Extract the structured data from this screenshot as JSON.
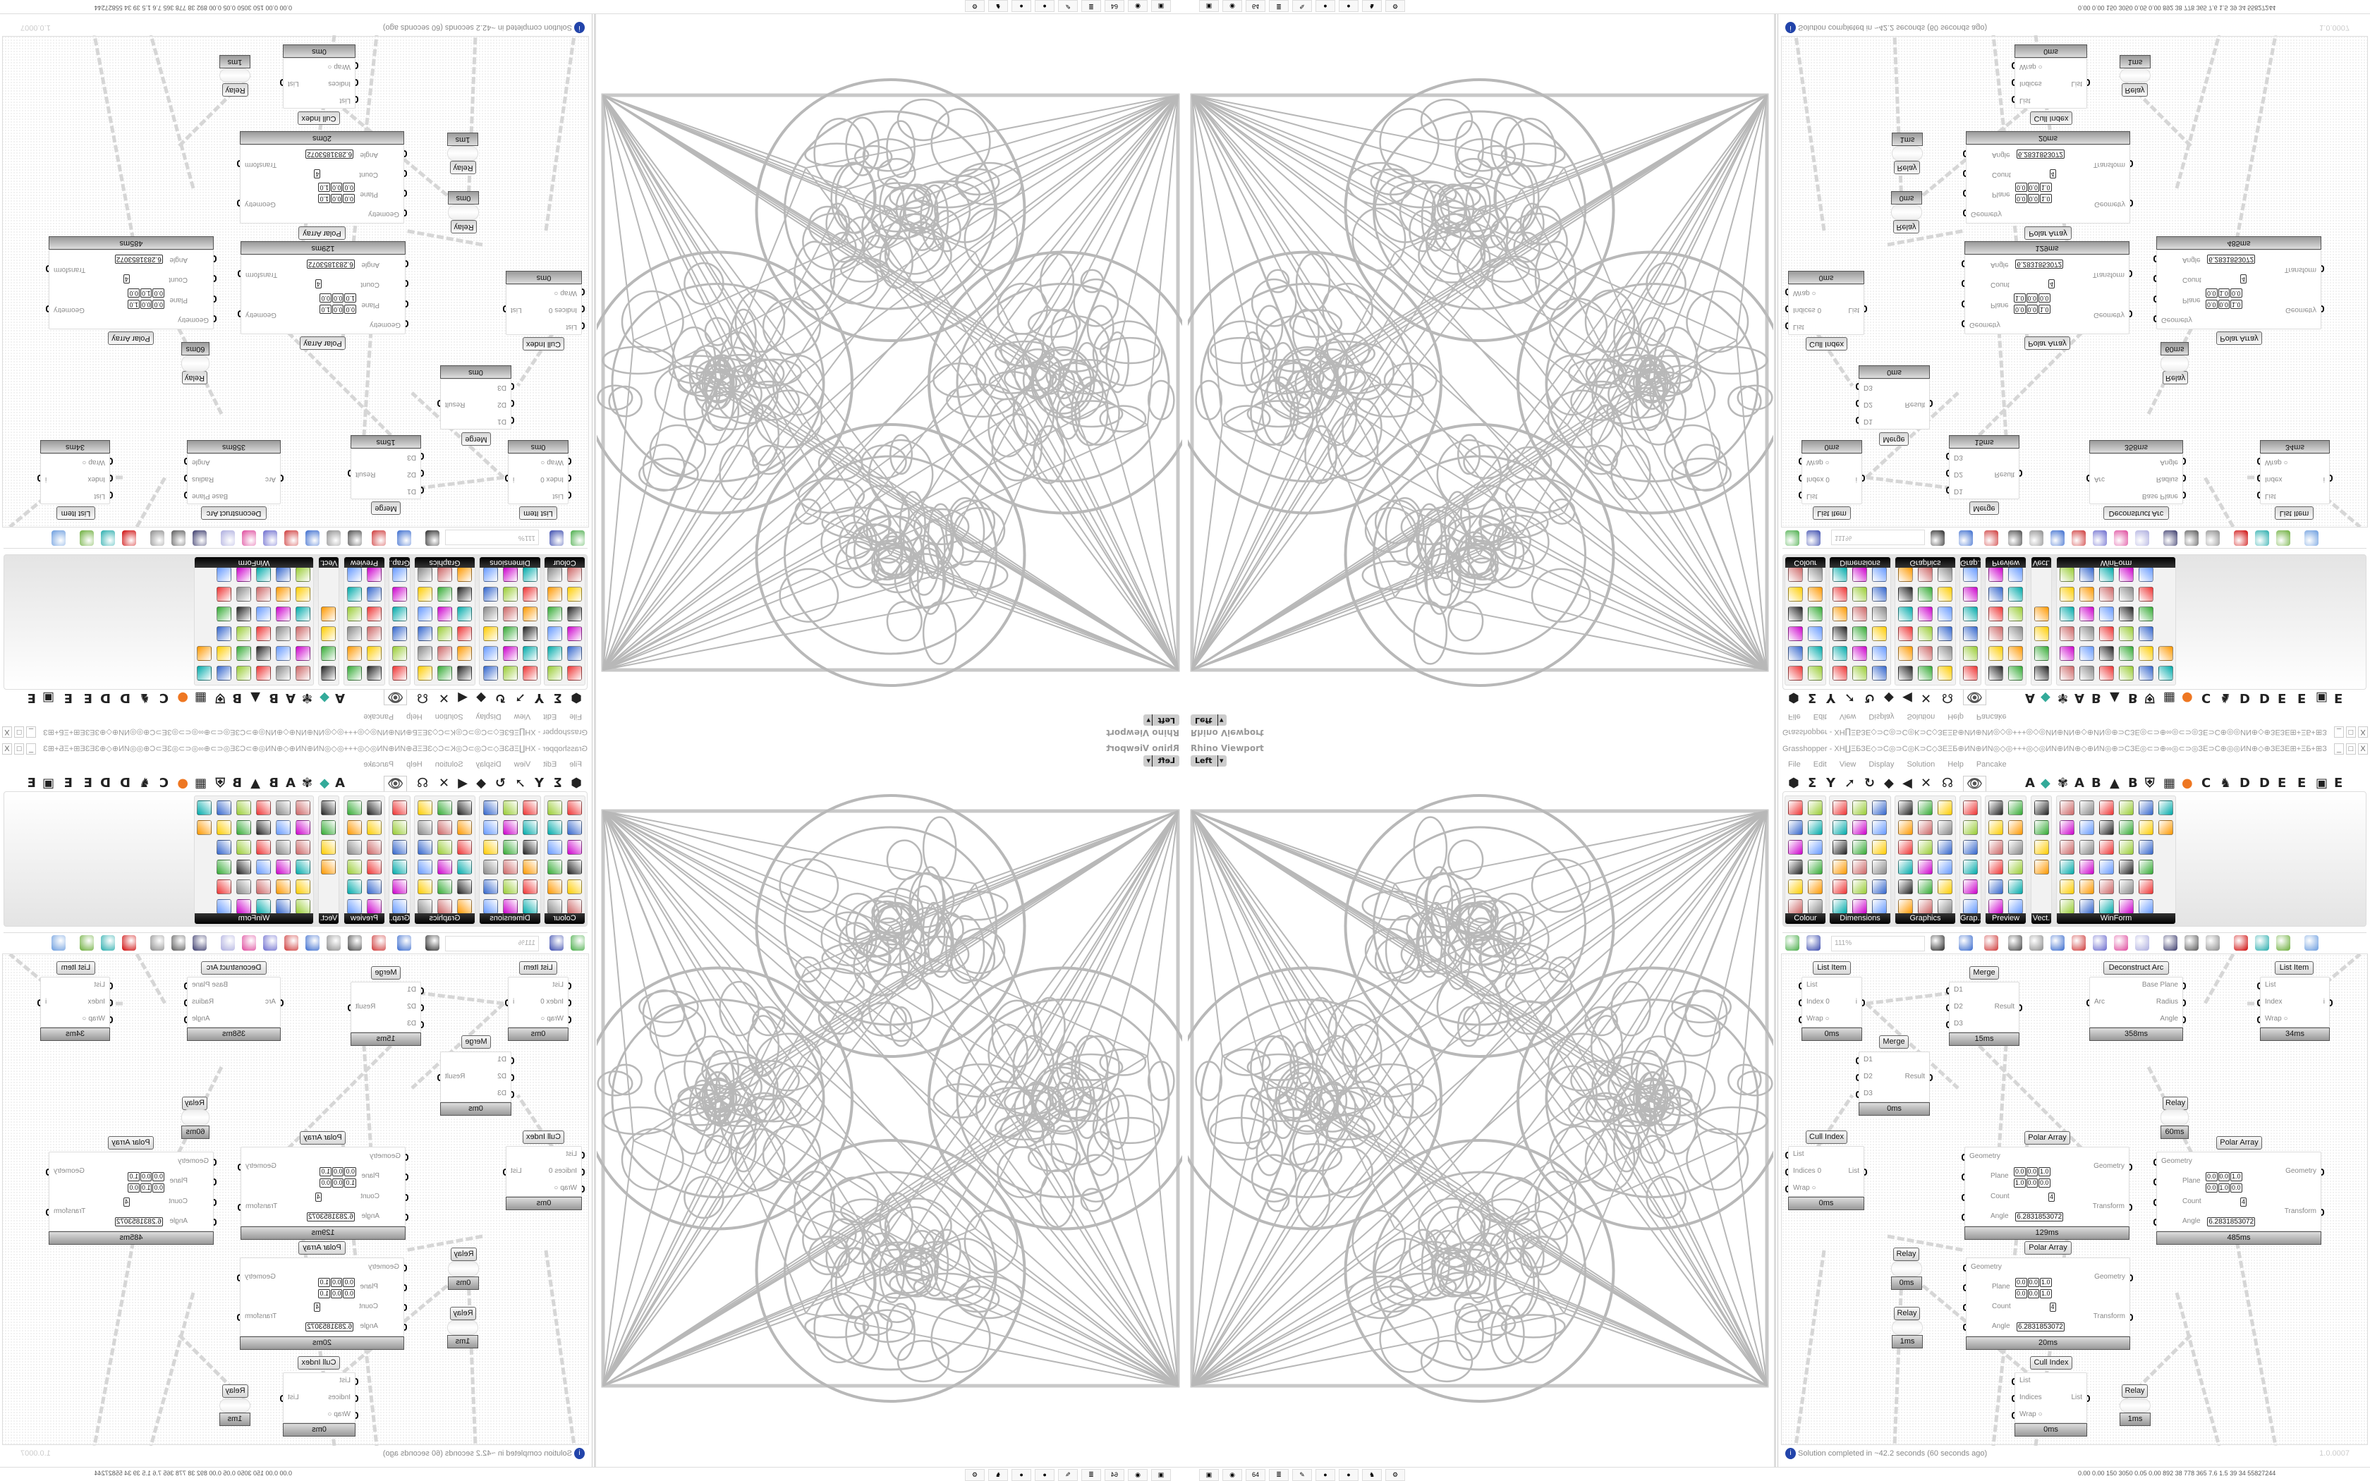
{
  "rhino": {
    "title": "Rhino Viewport",
    "view": "Left"
  },
  "gh": {
    "title": "Grasshopper - XH∐ΞБЗЕ◇⊃C◎⊃C◎K⊃C◇ЗЕΞБ⊕ИN⊕ИN◎◇◎+++◎◇◎ИN⊕ИN⊕◇⊕ИN◎⊕⊃CЗЕ◎⊂⊃⊕∞◎⊂⊃◎ЗЕ⊃C⊕◎◎ИN⊕◇⊕ЗЕЗЕ⊞+ΞБ+⊞ЗЕЗЕ⊕◇⊕◎⊃CЗЕ⊕+⊃C...",
    "window_buttons": [
      "_",
      "□",
      "X"
    ],
    "menu": [
      "File",
      "Edit",
      "View",
      "Display",
      "Solution",
      "Help",
      "Pancake"
    ],
    "tabs": [
      "⬢",
      "Σ",
      "Y",
      "➚",
      "↻",
      "◆",
      "◀",
      "✕",
      "☊",
      "👁",
      "A",
      "◆",
      "✾",
      "A",
      "B",
      "▲",
      "B",
      "⛨",
      "▦",
      "●",
      "C",
      "♞",
      "D",
      "D",
      "E",
      "E",
      "▣",
      "E"
    ],
    "panels": [
      "Colour",
      "Dimensions",
      "Graphics",
      "Grap...",
      "Preview",
      "Vect.",
      "WinForm"
    ],
    "zoom": "111%",
    "status": "Solution completed in ~42.2 seconds (60 seconds ago)",
    "version": "1.0.0007",
    "components": [
      {
        "name": "List Item",
        "inputs": [
          "List",
          "Index 0",
          "Wrap ○"
        ],
        "outputs": [
          "i"
        ],
        "time": "0ms"
      },
      {
        "name": "Merge",
        "inputs": [
          "D1",
          "D2",
          "D3"
        ],
        "outputs": [
          "Result"
        ],
        "time": "15ms"
      },
      {
        "name": "Deconstruct Arc",
        "inputs": [
          "Arc"
        ],
        "outputs": [
          "Base Plane",
          "Radius",
          "Angle"
        ],
        "time": "358ms"
      },
      {
        "name": "List Item",
        "inputs": [
          "List",
          "Index",
          "Wrap ○"
        ],
        "outputs": [
          "i"
        ],
        "time": "34ms"
      },
      {
        "name": "Merge",
        "inputs": [
          "D1",
          "D2",
          "D3"
        ],
        "outputs": [
          "Result"
        ],
        "time": "0ms"
      },
      {
        "name": "Relay",
        "inputs": [],
        "outputs": [],
        "time": "60ms"
      },
      {
        "name": "Cull Index",
        "inputs": [
          "List",
          "Indices 0",
          "Wrap ○"
        ],
        "outputs": [
          "List"
        ],
        "time": "0ms"
      },
      {
        "name": "Polar Array",
        "inputs": [
          "Geometry",
          "Plane",
          "Count",
          "Angle"
        ],
        "outputs": [
          "Geometry",
          "Transform"
        ],
        "plane_o": [
          "0.0",
          "0.0",
          "1.0"
        ],
        "plane_z": [
          "1.0",
          "0.0",
          "0.0"
        ],
        "count": "4",
        "angle": "6.2831853072",
        "time": "129ms"
      },
      {
        "name": "Polar Array",
        "inputs": [
          "Geometry",
          "Plane",
          "Count",
          "Angle"
        ],
        "outputs": [
          "Geometry",
          "Transform"
        ],
        "plane_o": [
          "0.0",
          "0.0",
          "1.0"
        ],
        "plane_z": [
          "0.0",
          "1.0",
          "0.0"
        ],
        "count": "4",
        "angle": "6.2831853072",
        "time": "485ms"
      },
      {
        "name": "Relay",
        "inputs": [],
        "outputs": [],
        "time": "0ms"
      },
      {
        "name": "Relay",
        "inputs": [],
        "outputs": [],
        "time": "1ms"
      },
      {
        "name": "Polar Array",
        "inputs": [
          "Geometry",
          "Plane",
          "Count",
          "Angle"
        ],
        "outputs": [
          "Geometry",
          "Transform"
        ],
        "plane_o": [
          "0.0",
          "0.0",
          "1.0"
        ],
        "plane_z": [
          "0.0",
          "0.0",
          "1.0"
        ],
        "count": "4",
        "angle": "6.2831853072",
        "time": "20ms"
      },
      {
        "name": "Cull Index",
        "inputs": [
          "List",
          "Indices",
          "Wrap ○"
        ],
        "outputs": [
          "List"
        ],
        "time": "0ms"
      },
      {
        "name": "Relay",
        "inputs": [],
        "outputs": [],
        "time": "1ms"
      }
    ]
  },
  "taskbar": {
    "apps": [
      "green-disk",
      "firefox",
      "64-disk",
      "scroll",
      "notepad",
      "dark-ball",
      "dark-ball",
      "rhino",
      "red-gear"
    ],
    "app_glyphs": [
      "▣",
      "◉",
      "64",
      "≣",
      "✎",
      "●",
      "●",
      "♞",
      "⚙"
    ],
    "perf": "0.00 0.00 150 3050 0.05 0.00 892  38  778  365  7.6  1.5  39  34  55827244"
  }
}
